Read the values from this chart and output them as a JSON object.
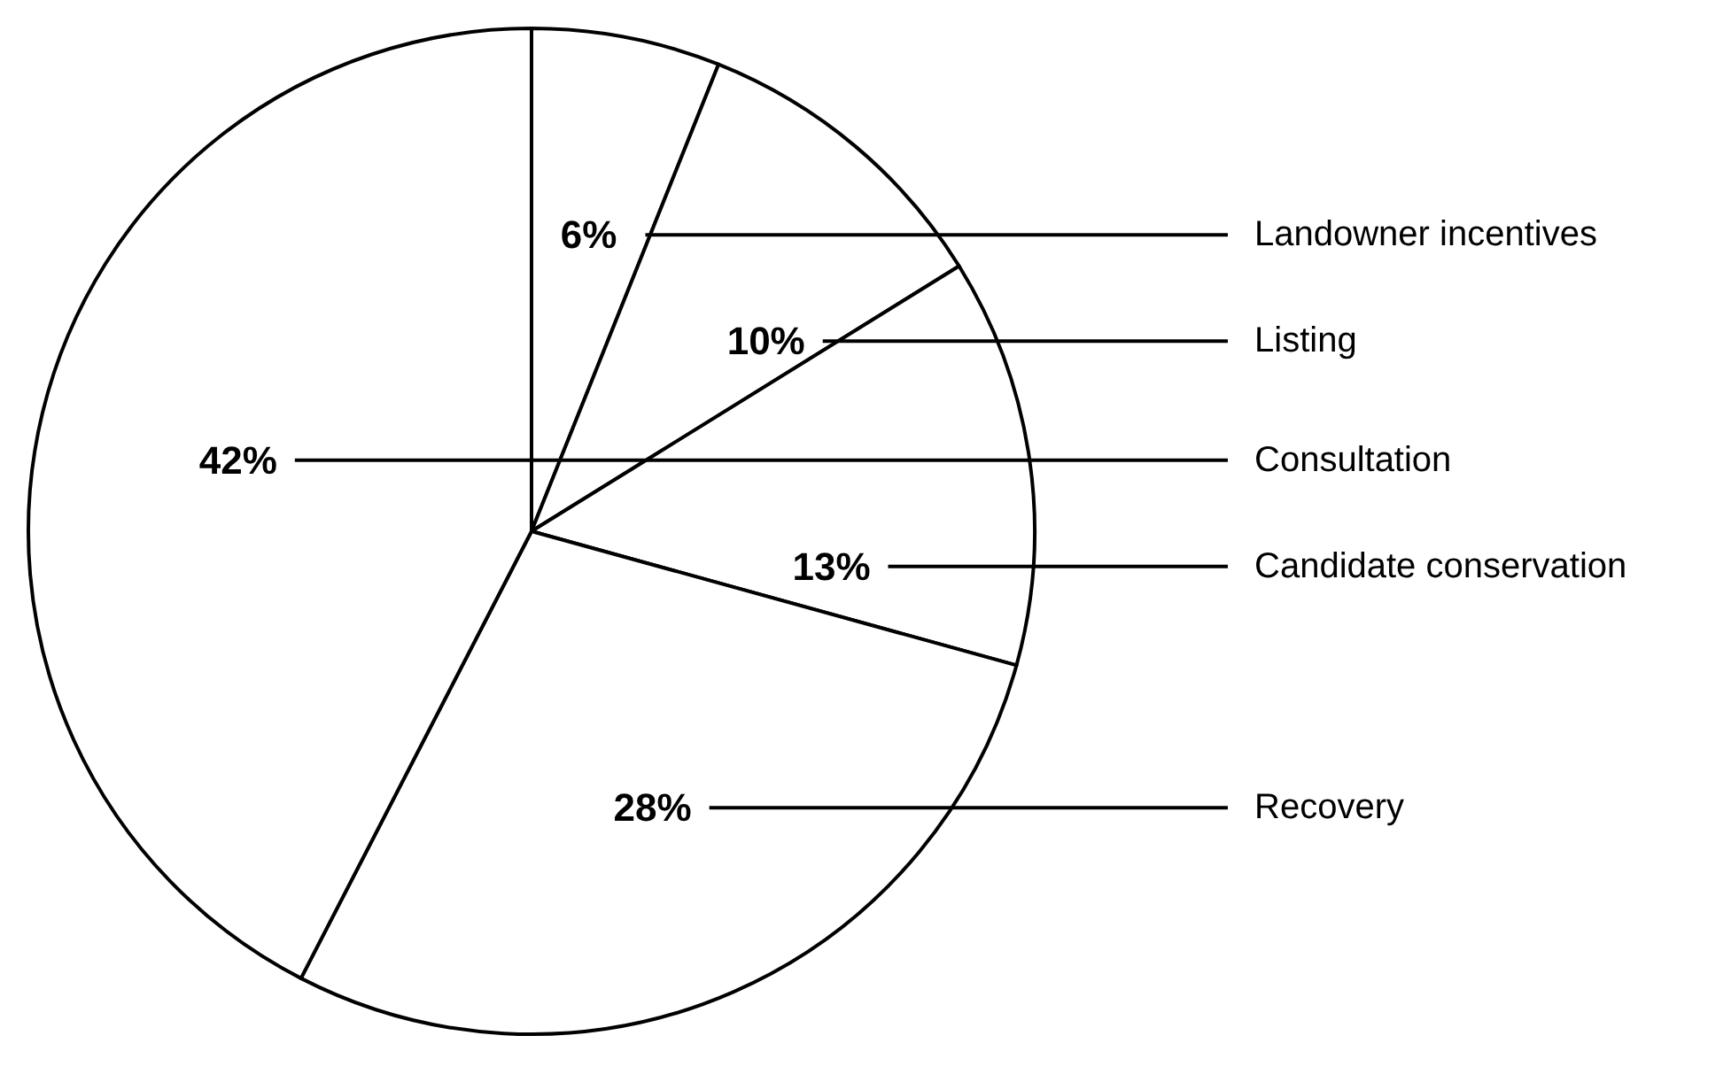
{
  "chart_data": {
    "type": "pie",
    "categories": [
      "Landowner incentives",
      "Listing",
      "Candidate conservation",
      "Recovery",
      "Consultation"
    ],
    "values": [
      6,
      10,
      13,
      28,
      42
    ],
    "colors": [
      "#ffffff",
      "#ffffff",
      "#ffffff",
      "#ffffff",
      "#ffffff"
    ],
    "value_labels": [
      "6%",
      "10%",
      "13%",
      "28%",
      "42%"
    ],
    "legend": false
  }
}
